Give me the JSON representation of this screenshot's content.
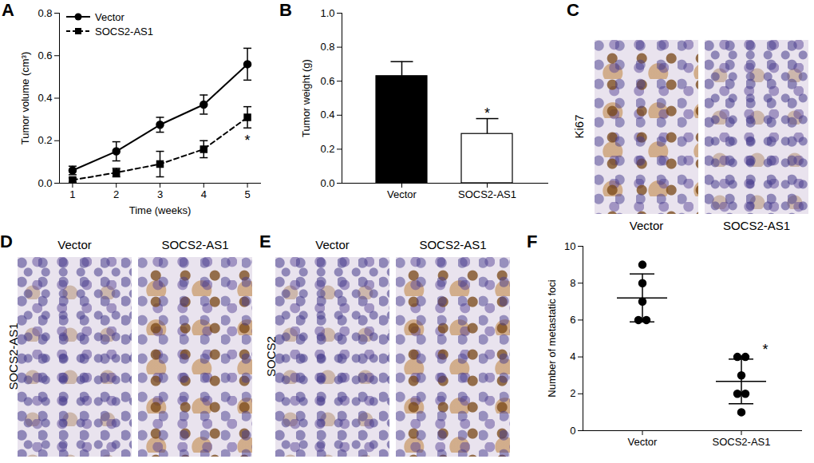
{
  "chart_data": [
    {
      "panel": "A",
      "type": "line",
      "x": [
        1,
        2,
        3,
        4,
        5
      ],
      "xlim": [
        0.7,
        5.3
      ],
      "xticks": [
        1,
        2,
        3,
        4,
        5
      ],
      "ylim": [
        0,
        0.8
      ],
      "yticks": [
        {
          "value": 0,
          "label": "0.0"
        },
        {
          "value": 0.2,
          "label": "0.2"
        },
        {
          "value": 0.4,
          "label": "0.4"
        },
        {
          "value": 0.6,
          "label": "0.6"
        },
        {
          "value": 0.8,
          "label": "0.8"
        }
      ],
      "x_label": "Time (weeks)",
      "y_label": "Tumor volume (cm³)",
      "legend": "top-left",
      "series": [
        {
          "name": "Vector",
          "color": "#000000",
          "marker": "circle",
          "line_style": "solid",
          "values": [
            0.06,
            0.15,
            0.275,
            0.37,
            0.56
          ],
          "errors": [
            0.02,
            0.045,
            0.035,
            0.045,
            0.075
          ]
        },
        {
          "name": "SOCS2-AS1",
          "color": "#000000",
          "marker": "square",
          "line_style": "dashed",
          "values": [
            0.015,
            0.05,
            0.09,
            0.16,
            0.31
          ],
          "errors": [
            0.01,
            0.02,
            0.06,
            0.04,
            0.05
          ]
        }
      ],
      "annotations": [
        {
          "text": "*",
          "x": 5,
          "y": 0.2
        }
      ]
    },
    {
      "panel": "B",
      "type": "bar",
      "categories": [
        "Vector",
        "SOCS2-AS1"
      ],
      "values": [
        0.63,
        0.29
      ],
      "errors": [
        0.085,
        0.09
      ],
      "colors": [
        "#000000",
        "#ffffff"
      ],
      "ylim": [
        0,
        1
      ],
      "yticks": [
        {
          "value": 0,
          "label": "0.0"
        },
        {
          "value": 0.2,
          "label": "0.2"
        },
        {
          "value": 0.4,
          "label": "0.4"
        },
        {
          "value": 0.6,
          "label": "0.6"
        },
        {
          "value": 0.8,
          "label": "0.8"
        },
        {
          "value": 1,
          "label": "1.0"
        }
      ],
      "y_label": "Tumor weight (g)",
      "annotations": [
        {
          "text": "*",
          "x": "SOCS2-AS1",
          "y": 0.41
        }
      ]
    },
    {
      "panel": "F",
      "type": "scatter",
      "categories": [
        "Vector",
        "SOCS2-AS1"
      ],
      "points": [
        [
          9,
          8,
          7,
          6,
          6
        ],
        [
          4,
          4,
          3,
          2,
          2,
          1
        ]
      ],
      "means": [
        7.2,
        2.67
      ],
      "errors": [
        1.3,
        1.21
      ],
      "color": "#000000",
      "marker": "circle",
      "ylim": [
        0,
        10
      ],
      "yticks": [
        0,
        2,
        4,
        6,
        8,
        10
      ],
      "y_label": "Number of metastatic foci",
      "annotations": [
        {
          "text": "*",
          "x": "SOCS2-AS1",
          "y": 4.4
        }
      ]
    }
  ],
  "images": [
    {
      "panel": "C",
      "row_label": "Ki67",
      "column_labels": [
        "Vector",
        "SOCS2-AS1"
      ]
    },
    {
      "panel": "D",
      "row_label": "SOCS2-AS1",
      "column_labels": [
        "Vector",
        "SOCS2-AS1"
      ]
    },
    {
      "panel": "E",
      "row_label": "SOCS2",
      "column_labels": [
        "Vector",
        "SOCS2-AS1"
      ]
    }
  ]
}
